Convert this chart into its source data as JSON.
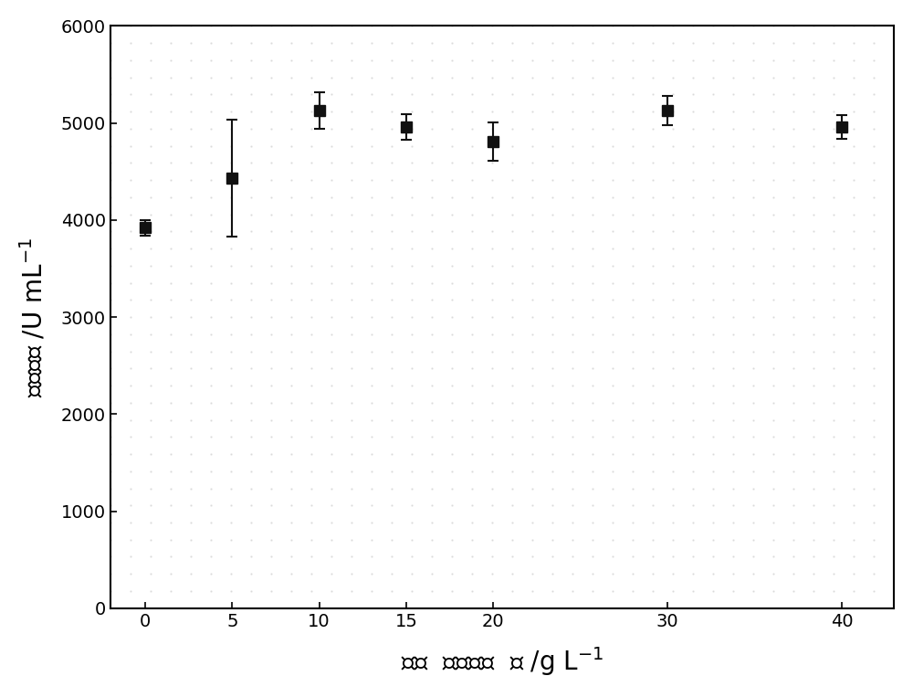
{
  "x": [
    0,
    5,
    10,
    15,
    20,
    30,
    40
  ],
  "y": [
    3920,
    4430,
    5130,
    4960,
    4810,
    5130,
    4960
  ],
  "yerr": [
    80,
    600,
    190,
    130,
    200,
    150,
    120
  ],
  "xlim": [
    -2,
    43
  ],
  "ylim": [
    0,
    6000
  ],
  "yticks": [
    0,
    1000,
    2000,
    3000,
    4000,
    5000,
    6000
  ],
  "xticks": [
    0,
    5,
    10,
    15,
    20,
    30,
    40
  ],
  "line_color": "#333333",
  "marker_color": "#111111",
  "marker": "s",
  "markersize": 9,
  "linewidth": 1.5,
  "capsize": 4,
  "background_color": "#ffffff",
  "fig_bg": "#ffffff"
}
